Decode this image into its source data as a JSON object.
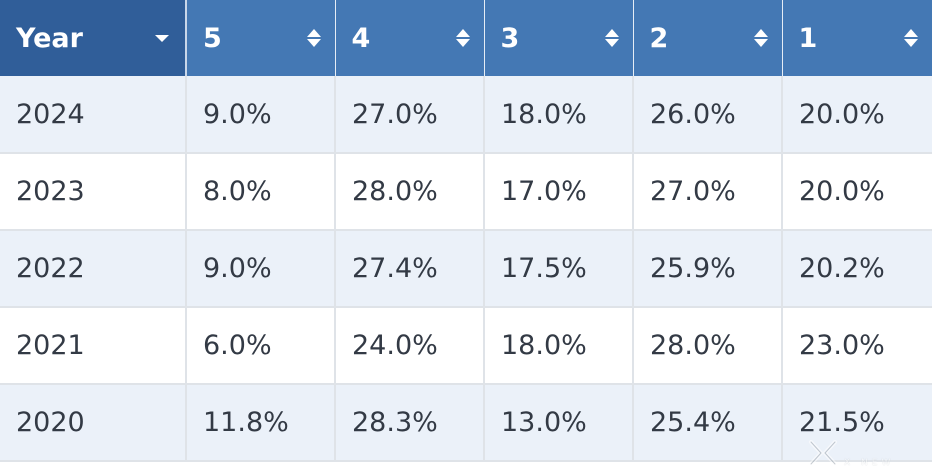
{
  "table": {
    "columns": [
      {
        "label": "Year",
        "sort": "dropdown"
      },
      {
        "label": "5",
        "sort": "both"
      },
      {
        "label": "4",
        "sort": "both"
      },
      {
        "label": "3",
        "sort": "both"
      },
      {
        "label": "2",
        "sort": "both"
      },
      {
        "label": "1",
        "sort": "both"
      }
    ],
    "rows": [
      [
        "2024",
        "9.0%",
        "27.0%",
        "18.0%",
        "26.0%",
        "20.0%"
      ],
      [
        "2023",
        "8.0%",
        "28.0%",
        "17.0%",
        "27.0%",
        "20.0%"
      ],
      [
        "2022",
        "9.0%",
        "27.4%",
        "17.5%",
        "25.9%",
        "20.2%"
      ],
      [
        "2021",
        "6.0%",
        "24.0%",
        "18.0%",
        "28.0%",
        "23.0%"
      ],
      [
        "2020",
        "11.8%",
        "28.3%",
        "13.0%",
        "25.4%",
        "21.5%"
      ]
    ]
  },
  "colors": {
    "header_bg": "#4478b4",
    "header_active_bg": "#305e99",
    "row_alt_bg": "#ebf1f9",
    "text": "#333a45"
  },
  "watermark": {
    "text": "X NEW",
    "icon": "watermark-logo-icon"
  }
}
